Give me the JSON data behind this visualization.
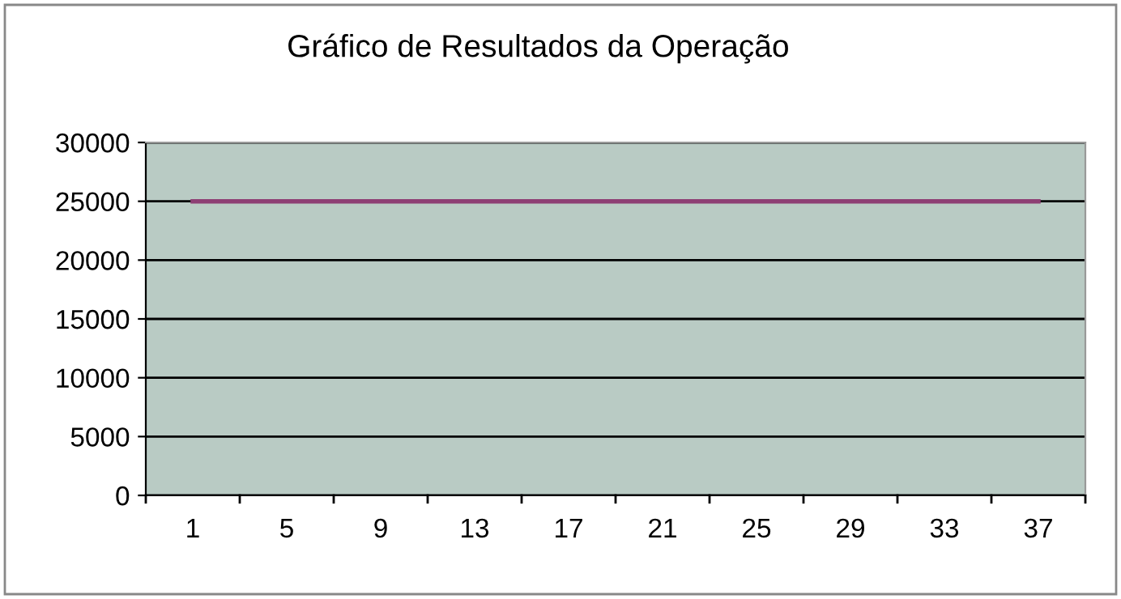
{
  "chart_data": {
    "type": "line",
    "title": "Gráfico de Resultados da Operação",
    "categories": [
      "1",
      null,
      null,
      null,
      "5",
      null,
      null,
      null,
      "9",
      null,
      null,
      null,
      "13",
      null,
      null,
      null,
      "17",
      null,
      null,
      null,
      "21",
      null,
      null,
      null,
      "25",
      null,
      null,
      null,
      "29",
      null,
      null,
      null,
      "33",
      null,
      null,
      null,
      "37"
    ],
    "series": [
      {
        "color": "#8e3f74",
        "values": [
          25000,
          25000,
          25000,
          25000,
          25000,
          25000,
          25000,
          25000,
          25000,
          25000,
          25000,
          25000,
          25000,
          25000,
          25000,
          25000,
          25000,
          25000,
          25000,
          25000,
          25000,
          25000,
          25000,
          25000,
          25000,
          25000,
          25000,
          25000,
          25000,
          25000,
          25000,
          25000,
          25000,
          25000,
          25000,
          25000,
          25000
        ]
      }
    ],
    "ylim": [
      0,
      30000
    ],
    "yticks": [
      0,
      5000,
      10000,
      15000,
      20000,
      25000,
      30000
    ],
    "grid": "y",
    "legend": false,
    "marker": "none",
    "line_style": "solid"
  }
}
